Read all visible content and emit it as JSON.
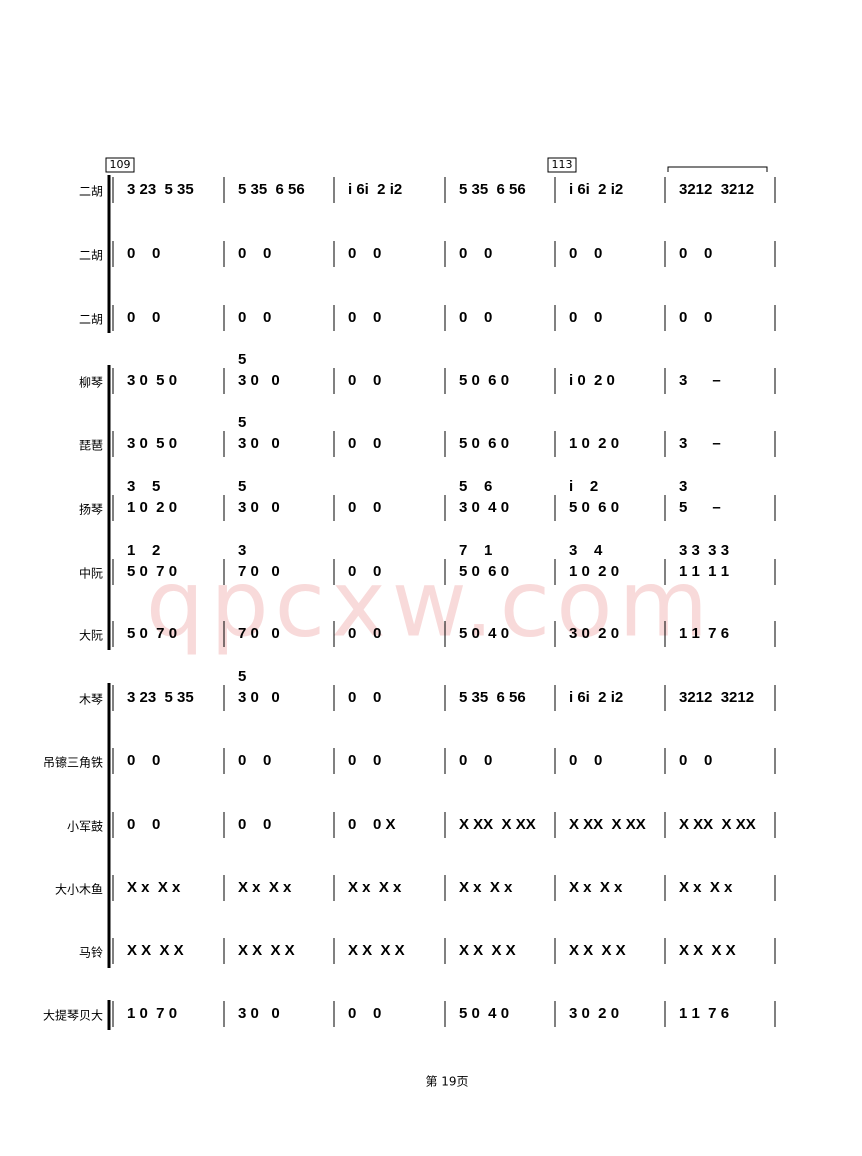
{
  "measure_numbers": [
    "109",
    "113"
  ],
  "rows": [
    {
      "label": "二胡",
      "measures": [
        "3 23  5 35",
        "5 35  6 56",
        "i 6i  2 i2",
        "5 35  6 56",
        "i 6i  2 i2",
        "3212  3212"
      ]
    },
    {
      "label": "二胡",
      "measures": [
        "0    0",
        "0    0",
        "0    0",
        "0    0",
        "0    0",
        "0    0"
      ]
    },
    {
      "label": "二胡",
      "measures": [
        "0    0",
        "0    0",
        "0    0",
        "0    0",
        "0    0",
        "0    0"
      ]
    },
    {
      "label": "柳琴",
      "measures": [
        "3 0  5 0",
        "3 0   0",
        "0    0",
        "5 0  6 0",
        "i 0  2 0",
        "3      –"
      ],
      "upper": [
        null,
        "5",
        null,
        null,
        null,
        null
      ]
    },
    {
      "label": "琵琶",
      "measures": [
        "3 0  5 0",
        "3 0   0",
        "0    0",
        "5 0  6 0",
        "1 0  2 0",
        "3      –"
      ],
      "upper": [
        null,
        "5",
        null,
        null,
        null,
        null
      ]
    },
    {
      "label": "扬琴",
      "measures": [
        "1 0  2 0",
        "3 0   0",
        "0    0",
        "3 0  4 0",
        "5 0  6 0",
        "5      –"
      ],
      "upper": [
        "3    5",
        "5",
        null,
        "5    6",
        "i    2",
        "3"
      ]
    },
    {
      "label": "中阮",
      "measures": [
        "5 0  7 0",
        "7 0   0",
        "0    0",
        "5 0  6 0",
        "1 0  2 0",
        "1 1  1 1"
      ],
      "upper": [
        "1    2",
        "3",
        null,
        "7    1",
        "3    4",
        "3 3  3 3"
      ]
    },
    {
      "label": "大阮",
      "measures": [
        "5 0  7 0",
        "7 0   0",
        "0    0",
        "5 0  4 0",
        "3 0  2 0",
        "1 1  7 6"
      ]
    },
    {
      "label": "木琴",
      "measures": [
        "3 23  5 35",
        "3 0   0",
        "0    0",
        "5 35  6 56",
        "i 6i  2 i2",
        "3212  3212"
      ],
      "upper": [
        null,
        "5",
        null,
        null,
        null,
        null
      ]
    },
    {
      "label": "吊镲三角铁",
      "measures": [
        "0    0",
        "0    0",
        "0    0",
        "0    0",
        "0    0",
        "0    0"
      ]
    },
    {
      "label": "小军鼓",
      "measures": [
        "0    0",
        "0    0",
        "0    0 X",
        "X XX  X XX",
        "X XX  X XX",
        "X XX  X XX"
      ]
    },
    {
      "label": "大小木鱼",
      "measures": [
        "X x  X x",
        "X x  X x",
        "X x  X x",
        "X x  X x",
        "X x  X x",
        "X x  X x"
      ]
    },
    {
      "label": "马铃",
      "measures": [
        "X X  X X",
        "X X  X X",
        "X X  X X",
        "X X  X X",
        "X X  X X",
        "X X  X X"
      ]
    },
    {
      "label": "大提琴贝大",
      "measures": [
        "1 0  7 0",
        "3 0   0",
        "0    0",
        "5 0  4 0",
        "3 0  2 0",
        "1 1  7 6"
      ]
    }
  ],
  "watermark": "qpcxw.com",
  "footer": "第 19页"
}
